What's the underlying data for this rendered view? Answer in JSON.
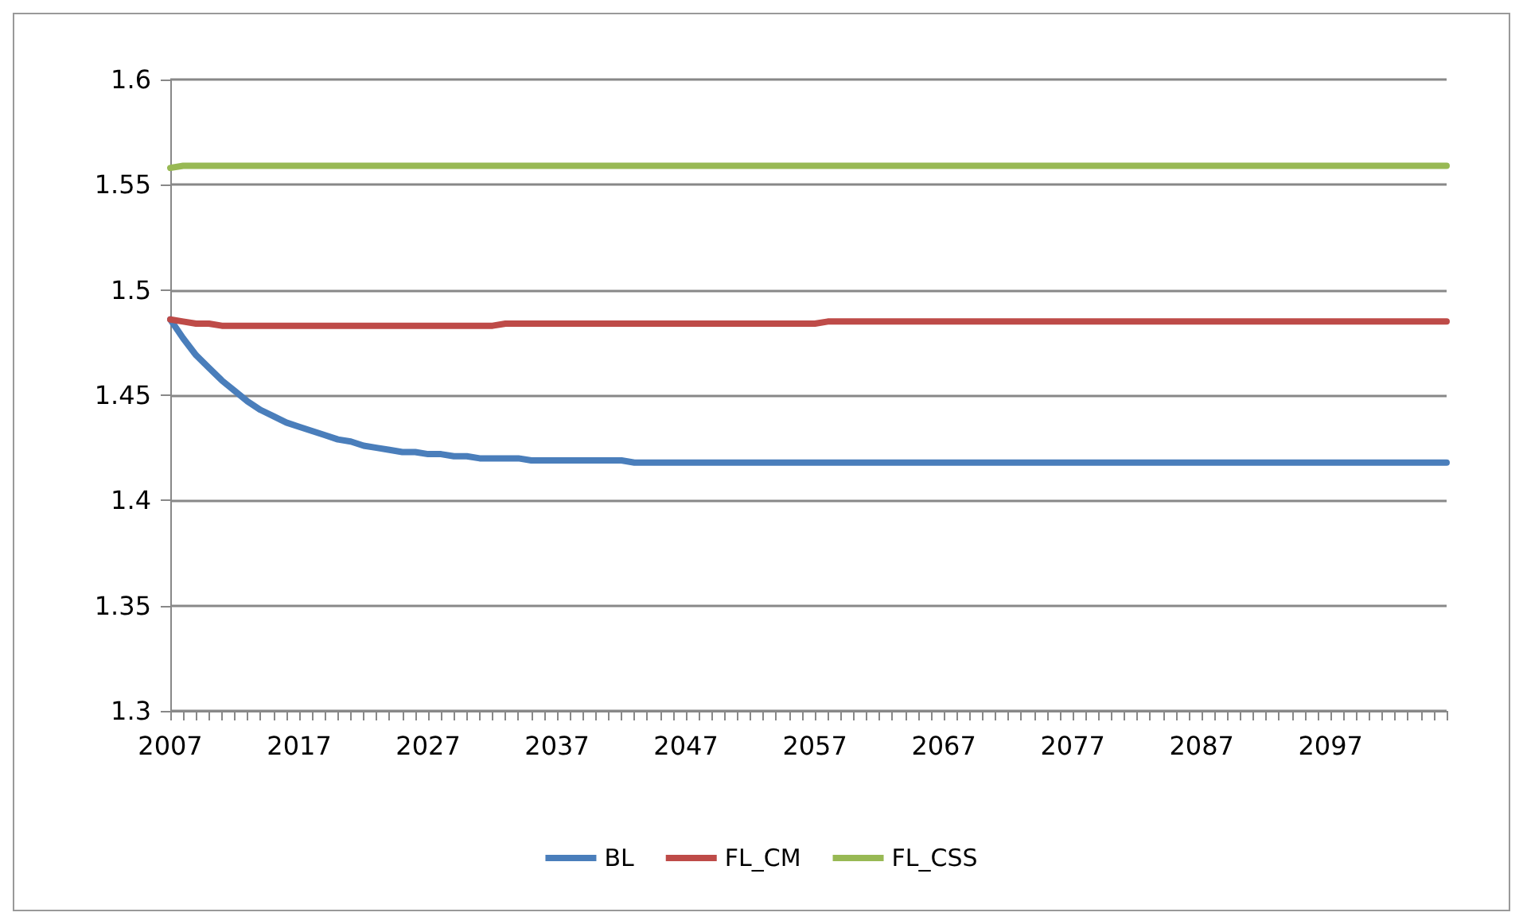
{
  "chart_data": {
    "type": "line",
    "categories": [
      "2007",
      null,
      null,
      null,
      null,
      null,
      null,
      null,
      null,
      null,
      "2017",
      null,
      null,
      null,
      null,
      null,
      null,
      null,
      null,
      null,
      "2027",
      null,
      null,
      null,
      null,
      null,
      null,
      null,
      null,
      null,
      "2037",
      null,
      null,
      null,
      null,
      null,
      null,
      null,
      null,
      null,
      "2047",
      null,
      null,
      null,
      null,
      null,
      null,
      null,
      null,
      null,
      "2057",
      null,
      null,
      null,
      null,
      null,
      null,
      null,
      null,
      null,
      "2067",
      null,
      null,
      null,
      null,
      null,
      null,
      null,
      null,
      null,
      "2077",
      null,
      null,
      null,
      null,
      null,
      null,
      null,
      null,
      null,
      "2087",
      null,
      null,
      null,
      null,
      null,
      null,
      null,
      null,
      null,
      "2097",
      null,
      null,
      null,
      null,
      null,
      null,
      null,
      null,
      null
    ],
    "series": [
      {
        "name": "BL",
        "color": "#4a7ebb",
        "values": [
          1.486,
          1.477,
          1.469,
          1.463,
          1.457,
          1.452,
          1.447,
          1.443,
          1.44,
          1.437,
          1.435,
          1.433,
          1.431,
          1.429,
          1.428,
          1.426,
          1.425,
          1.424,
          1.423,
          1.423,
          1.422,
          1.422,
          1.421,
          1.421,
          1.42,
          1.42,
          1.42,
          1.42,
          1.419,
          1.419,
          1.419,
          1.419,
          1.419,
          1.419,
          1.419,
          1.419,
          1.418,
          1.418,
          1.418,
          1.418,
          1.418,
          1.418,
          1.418,
          1.418,
          1.418,
          1.418,
          1.418,
          1.418,
          1.418,
          1.418,
          1.418,
          1.418,
          1.418,
          1.418,
          1.418,
          1.418,
          1.418,
          1.418,
          1.418,
          1.418,
          1.418,
          1.418,
          1.418,
          1.418,
          1.418,
          1.418,
          1.418,
          1.418,
          1.418,
          1.418,
          1.418,
          1.418,
          1.418,
          1.418,
          1.418,
          1.418,
          1.418,
          1.418,
          1.418,
          1.418,
          1.418,
          1.418,
          1.418,
          1.418,
          1.418,
          1.418,
          1.418,
          1.418,
          1.418,
          1.418,
          1.418,
          1.418,
          1.418,
          1.418,
          1.418,
          1.418,
          1.418,
          1.418,
          1.418,
          1.418
        ]
      },
      {
        "name": "FL_CM",
        "color": "#be4b48",
        "values": [
          1.486,
          1.485,
          1.484,
          1.484,
          1.483,
          1.483,
          1.483,
          1.483,
          1.483,
          1.483,
          1.483,
          1.483,
          1.483,
          1.483,
          1.483,
          1.483,
          1.483,
          1.483,
          1.483,
          1.483,
          1.483,
          1.483,
          1.483,
          1.483,
          1.483,
          1.483,
          1.484,
          1.484,
          1.484,
          1.484,
          1.484,
          1.484,
          1.484,
          1.484,
          1.484,
          1.484,
          1.484,
          1.484,
          1.484,
          1.484,
          1.484,
          1.484,
          1.484,
          1.484,
          1.484,
          1.484,
          1.484,
          1.484,
          1.484,
          1.484,
          1.484,
          1.485,
          1.485,
          1.485,
          1.485,
          1.485,
          1.485,
          1.485,
          1.485,
          1.485,
          1.485,
          1.485,
          1.485,
          1.485,
          1.485,
          1.485,
          1.485,
          1.485,
          1.485,
          1.485,
          1.485,
          1.485,
          1.485,
          1.485,
          1.485,
          1.485,
          1.485,
          1.485,
          1.485,
          1.485,
          1.485,
          1.485,
          1.485,
          1.485,
          1.485,
          1.485,
          1.485,
          1.485,
          1.485,
          1.485,
          1.485,
          1.485,
          1.485,
          1.485,
          1.485,
          1.485,
          1.485,
          1.485,
          1.485,
          1.485
        ]
      },
      {
        "name": "FL_CSS",
        "color": "#98b954",
        "values": [
          1.558,
          1.559,
          1.559,
          1.559,
          1.559,
          1.559,
          1.559,
          1.559,
          1.559,
          1.559,
          1.559,
          1.559,
          1.559,
          1.559,
          1.559,
          1.559,
          1.559,
          1.559,
          1.559,
          1.559,
          1.559,
          1.559,
          1.559,
          1.559,
          1.559,
          1.559,
          1.559,
          1.559,
          1.559,
          1.559,
          1.559,
          1.559,
          1.559,
          1.559,
          1.559,
          1.559,
          1.559,
          1.559,
          1.559,
          1.559,
          1.559,
          1.559,
          1.559,
          1.559,
          1.559,
          1.559,
          1.559,
          1.559,
          1.559,
          1.559,
          1.559,
          1.559,
          1.559,
          1.559,
          1.559,
          1.559,
          1.559,
          1.559,
          1.559,
          1.559,
          1.559,
          1.559,
          1.559,
          1.559,
          1.559,
          1.559,
          1.559,
          1.559,
          1.559,
          1.559,
          1.559,
          1.559,
          1.559,
          1.559,
          1.559,
          1.559,
          1.559,
          1.559,
          1.559,
          1.559,
          1.559,
          1.559,
          1.559,
          1.559,
          1.559,
          1.559,
          1.559,
          1.559,
          1.559,
          1.559,
          1.559,
          1.559,
          1.559,
          1.559,
          1.559,
          1.559,
          1.559,
          1.559,
          1.559,
          1.559
        ]
      }
    ],
    "ylim": [
      1.3,
      1.6
    ],
    "yticks": [
      1.3,
      1.35,
      1.4,
      1.45,
      1.5,
      1.55,
      1.6
    ],
    "grid": "y",
    "legend": "bottom",
    "marker": "none",
    "line_style": "solid"
  }
}
